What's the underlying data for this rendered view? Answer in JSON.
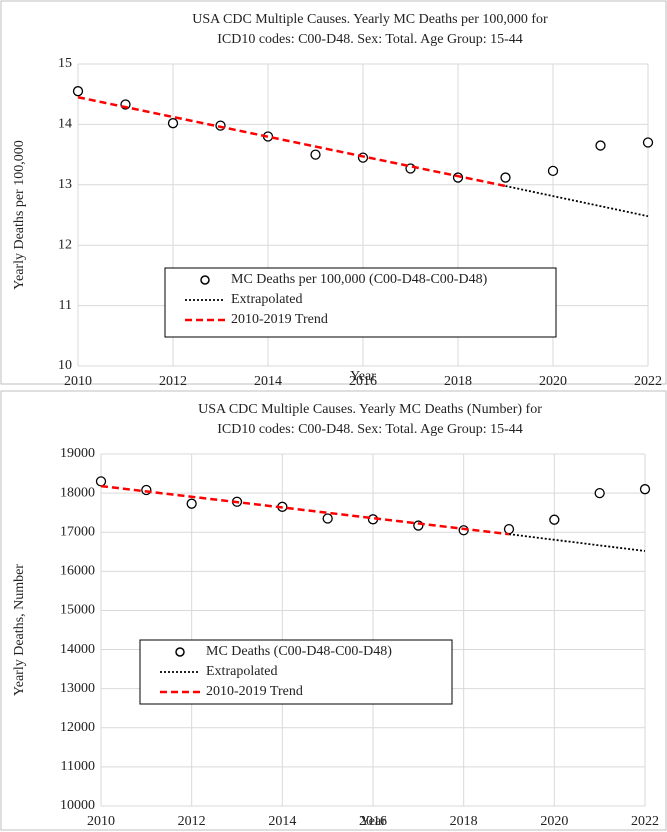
{
  "chart_data": [
    {
      "type": "scatter",
      "title": [
        "USA CDC Multiple Causes. Yearly MC Deaths per 100,000 for",
        "ICD10 codes: C00-D48. Sex: Total. Age Group: 15-44"
      ],
      "x_label": "Year",
      "y_label": "Yearly Deaths per 100,000",
      "xlim": [
        2010,
        2022
      ],
      "xticks": [
        2010,
        2012,
        2014,
        2016,
        2018,
        2020,
        2022
      ],
      "ylim": [
        10,
        15
      ],
      "yticks": [
        10,
        11,
        12,
        13,
        14,
        15
      ],
      "grid": true,
      "series": [
        {
          "name": "MC Deaths per 100,000 (C00-D48-C00-D48)",
          "color": "#000000",
          "style": "markers",
          "x": [
            2010,
            2011,
            2012,
            2013,
            2014,
            2015,
            2016,
            2017,
            2018,
            2019,
            2020,
            2021,
            2022
          ],
          "values": [
            14.55,
            14.33,
            14.02,
            13.98,
            13.8,
            13.5,
            13.45,
            13.27,
            13.12,
            13.12,
            13.23,
            13.65,
            13.7
          ]
        },
        {
          "name": "Extrapolated",
          "color": "#000000",
          "style": "dotted",
          "x": [
            2019,
            2022
          ],
          "values": [
            12.98,
            12.48
          ]
        },
        {
          "name": "2010-2019 Trend",
          "color": "#ff0000",
          "style": "dashed",
          "x": [
            2010,
            2019
          ],
          "values": [
            14.45,
            12.98
          ]
        }
      ]
    },
    {
      "type": "scatter",
      "title": [
        "USA CDC Multiple Causes. Yearly MC Deaths (Number) for",
        "ICD10 codes: C00-D48. Sex: Total. Age Group: 15-44"
      ],
      "x_label": "Year",
      "y_label": "Yearly Deaths, Number",
      "xlim": [
        2010,
        2022
      ],
      "xticks": [
        2010,
        2012,
        2014,
        2016,
        2018,
        2020,
        2022
      ],
      "ylim": [
        10000,
        19000
      ],
      "yticks": [
        10000,
        11000,
        12000,
        13000,
        14000,
        15000,
        16000,
        17000,
        18000,
        19000
      ],
      "grid": true,
      "series": [
        {
          "name": "MC Deaths (C00-D48-C00-D48)",
          "color": "#000000",
          "style": "markers",
          "x": [
            2010,
            2011,
            2012,
            2013,
            2014,
            2015,
            2016,
            2017,
            2018,
            2019,
            2020,
            2021,
            2022
          ],
          "values": [
            18300,
            18080,
            17730,
            17780,
            17650,
            17350,
            17330,
            17170,
            17050,
            17080,
            17320,
            18000,
            18100
          ]
        },
        {
          "name": "Extrapolated",
          "color": "#000000",
          "style": "dotted",
          "x": [
            2019,
            2022
          ],
          "values": [
            16950,
            16520
          ]
        },
        {
          "name": "2010-2019 Trend",
          "color": "#ff0000",
          "style": "dashed",
          "x": [
            2010,
            2019
          ],
          "values": [
            18180,
            16950
          ]
        }
      ]
    }
  ]
}
